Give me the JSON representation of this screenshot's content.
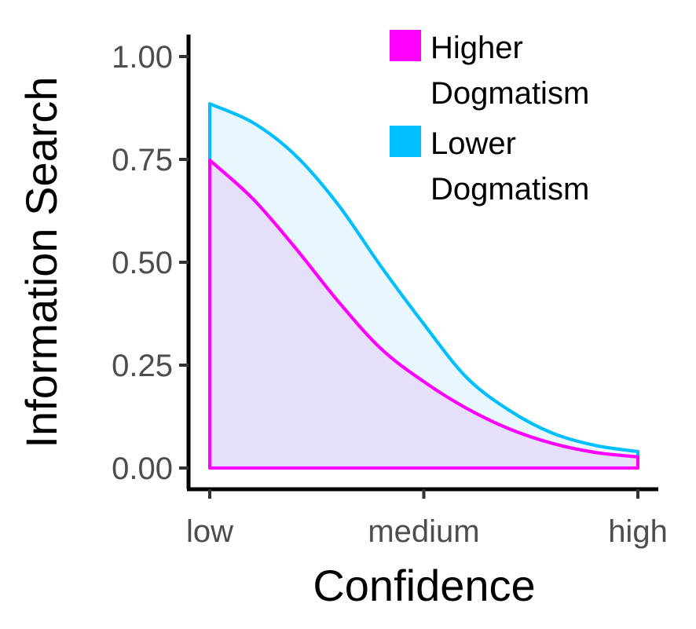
{
  "chart_data": {
    "type": "area",
    "xlabel": "Confidence",
    "ylabel": "Information Search",
    "x_categories": [
      "low",
      "medium",
      "high"
    ],
    "xlim": [
      0,
      1
    ],
    "ylim": [
      0,
      1
    ],
    "y_ticks": [
      "0.00",
      "0.25",
      "0.50",
      "0.75",
      "1.00"
    ],
    "y_tick_values": [
      0,
      0.25,
      0.5,
      0.75,
      1
    ],
    "grid": false,
    "legend_position": "top-right",
    "series": [
      {
        "name": "Lower Dogmatism",
        "legend_lines": [
          "Lower",
          "Dogmatism"
        ],
        "color": "#00BFFF",
        "fill": "#E4F6FD",
        "x": [
          0,
          0.1,
          0.2,
          0.3,
          0.4,
          0.5,
          0.6,
          0.7,
          0.8,
          0.9,
          1.0
        ],
        "values": [
          0.885,
          0.84,
          0.76,
          0.64,
          0.49,
          0.35,
          0.22,
          0.14,
          0.085,
          0.055,
          0.04
        ]
      },
      {
        "name": "Higher Dogmatism",
        "legend_lines": [
          "Higher",
          "Dogmatism"
        ],
        "color": "#FF00FF",
        "fill": "#E6DBF9",
        "x": [
          0,
          0.1,
          0.2,
          0.3,
          0.4,
          0.5,
          0.6,
          0.7,
          0.8,
          0.9,
          1.0
        ],
        "values": [
          0.748,
          0.655,
          0.535,
          0.405,
          0.29,
          0.21,
          0.145,
          0.095,
          0.06,
          0.038,
          0.027
        ]
      }
    ],
    "legend_order": [
      "Higher Dogmatism",
      "Lower Dogmatism"
    ]
  }
}
